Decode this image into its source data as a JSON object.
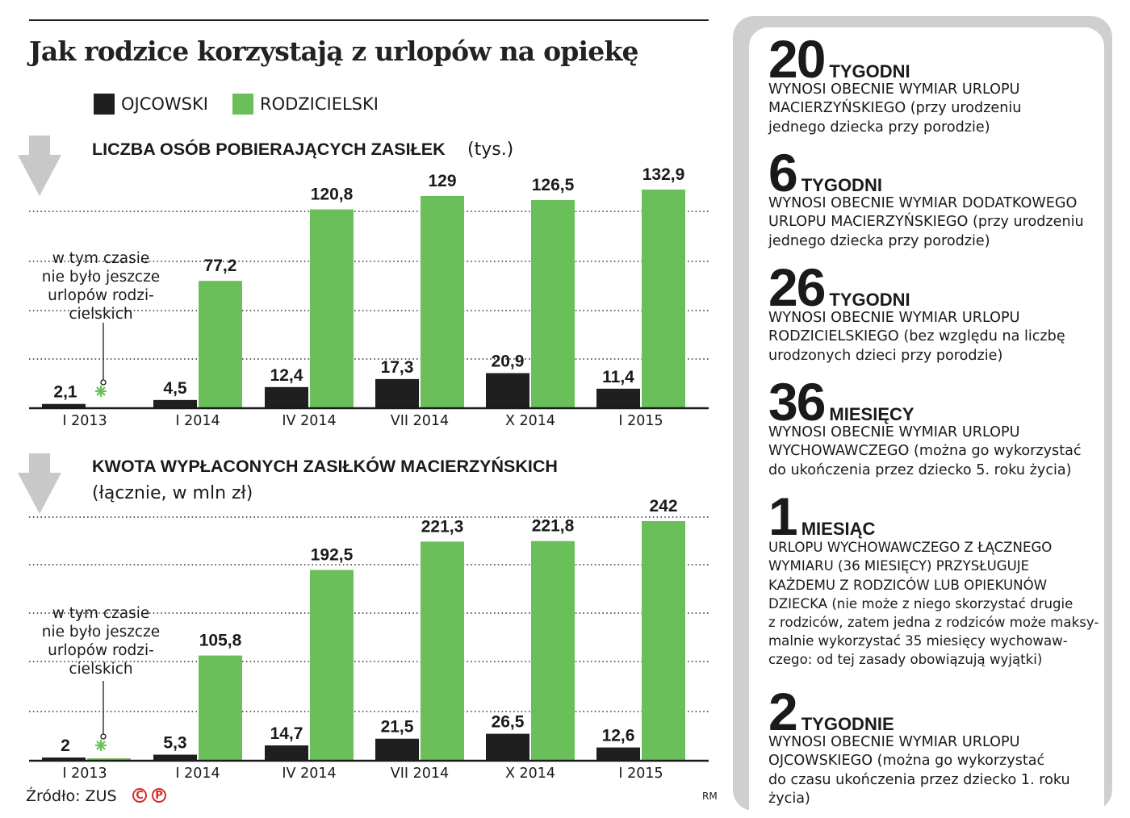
{
  "title": "Jak rodzice korzystają z urlopów na opiekę",
  "legend": {
    "ojcowski": "OJCOWSKI",
    "rodzicielski": "RODZICIELSKI"
  },
  "colors": {
    "ojcowski": "#1f1f1f",
    "rodzicielski": "#6abf5a",
    "panel_border": "#cfcfcf",
    "arrow": "#c8c8c8",
    "copyright": "#d42a2a"
  },
  "note": "w tym czasie nie było jeszcze urlopów rodzi- cielskich",
  "chart_data": [
    {
      "type": "bar",
      "title": "LICZBA OSÓB POBIERAJĄCYCH ZASIŁEK",
      "unit": "(tys.)",
      "categories": [
        "I 2013",
        "I 2014",
        "IV 2014",
        "VII 2014",
        "X 2014",
        "I 2015"
      ],
      "series": [
        {
          "name": "OJCOWSKI",
          "values": [
            2.1,
            4.5,
            12.4,
            17.3,
            20.9,
            11.4
          ],
          "labels": [
            "2,1",
            "4,5",
            "12,4",
            "17,3",
            "20,9",
            "11,4"
          ]
        },
        {
          "name": "RODZICIELSKI",
          "values": [
            null,
            77.2,
            120.8,
            129,
            126.5,
            132.9
          ],
          "labels": [
            "",
            "77,2",
            "120,8",
            "129",
            "126,5",
            "132,9"
          ]
        }
      ],
      "ylim": [
        0,
        140
      ],
      "grid": true
    },
    {
      "type": "bar",
      "title": "KWOTA WYPŁACONYCH ZASIŁKÓW MACIERZYŃSKICH",
      "unit": "(łącznie, w mln zł)",
      "categories": [
        "I 2013",
        "I 2014",
        "IV 2014",
        "VII 2014",
        "X 2014",
        "I 2015"
      ],
      "series": [
        {
          "name": "OJCOWSKI",
          "values": [
            2,
            5.3,
            14.7,
            21.5,
            26.5,
            12.6
          ],
          "labels": [
            "2",
            "5,3",
            "14,7",
            "21,5",
            "26,5",
            "12,6"
          ]
        },
        {
          "name": "RODZICIELSKI",
          "values": [
            null,
            105.8,
            192.5,
            221.3,
            221.8,
            242
          ],
          "labels": [
            "",
            "105,8",
            "192,5",
            "221,3",
            "221,8",
            "242"
          ]
        }
      ],
      "ylim": [
        0,
        255
      ],
      "grid": true
    }
  ],
  "source": "Źródło: ZUS",
  "credit": "RM",
  "facts": [
    {
      "num": "20",
      "unit": "TYGODNI",
      "desc": "WYNOSI OBECNIE WYMIAR URLOPU\nMACIERZYŃSKIEGO (przy urodzeniu\njednego dziecka przy porodzie)"
    },
    {
      "num": "6",
      "unit": "TYGODNI",
      "desc": "WYNOSI OBECNIE WYMIAR DODATKOWEGO\nURLOPU MACIERZYŃSKIEGO (przy urodzeniu\njednego dziecka przy porodzie)"
    },
    {
      "num": "26",
      "unit": "TYGODNI",
      "desc": "WYNOSI OBECNIE WYMIAR URLOPU\nRODZICIELSKIEGO (bez względu na liczbę\nurodzonych dzieci przy porodzie)"
    },
    {
      "num": "36",
      "unit": "MIESIĘCY",
      "desc": "WYNOSI OBECNIE WYMIAR URLOPU\nWYCHOWAWCZEGO (można go wykorzystać\ndo ukończenia przez dziecko 5. roku życia)"
    },
    {
      "num": "1",
      "unit": "MIESIĄC",
      "desc": "URLOPU WYCHOWAWCZEGO Z ŁĄCZNEGO\nWYMIARU (36 MIESIĘCY) PRZYSŁUGUJE\nKAŻDEMU Z RODZICÓW LUB OPIEKUNÓW\nDZIECKA (nie może z niego skorzystać drugie\nz rodziców, zatem jedna z rodziców może maksy-\nmalnie wykorzystać 35 miesięcy wychowaw-\nczego: od tej zasady obowiązują wyjątki)"
    },
    {
      "num": "2",
      "unit": "TYGODNIE",
      "desc": "WYNOSI OBECNIE WYMIAR URLOPU\nOJCOWSKIEGO (można go wykorzystać\ndo czasu ukończenia przez dziecko 1. roku życia)"
    }
  ]
}
